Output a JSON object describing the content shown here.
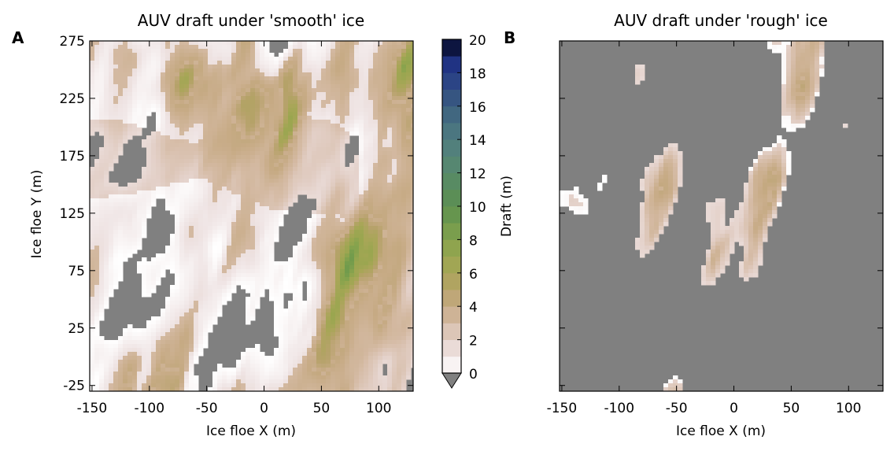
{
  "panel_letters": [
    "A",
    "B"
  ],
  "chart_data": [
    {
      "type": "heatmap",
      "title": "AUV draft under 'smooth' ice",
      "xlabel": "Ice floe X (m)",
      "ylabel": "Ice floe Y (m)",
      "xlim": [
        -152,
        130
      ],
      "ylim": [
        -30,
        275
      ],
      "xticks": [
        -150,
        -100,
        -50,
        0,
        50,
        100
      ],
      "yticks": [
        -25,
        25,
        75,
        125,
        175,
        225,
        275
      ],
      "no_data_color": "#808080",
      "seed": 7,
      "coverage": {
        "white": 0.2,
        "tan": 0.23,
        "olive": 0.08,
        "gap": 0.3
      }
    },
    {
      "type": "heatmap",
      "title": "AUV draft under 'rough' ice",
      "xlabel": "Ice floe X (m)",
      "ylabel": "",
      "xlim": [
        -152,
        130
      ],
      "ylim": [
        -30,
        275
      ],
      "xticks": [
        -150,
        -100,
        -50,
        0,
        50,
        100
      ],
      "yticks": [
        -25,
        25,
        75,
        125,
        175,
        225,
        275
      ],
      "show_ytick_labels": false,
      "no_data_color": "#808080",
      "seed": 23,
      "coverage": {
        "white": 0.05,
        "tan": 0.12,
        "olive": 0.07,
        "gap": 0.62
      }
    }
  ],
  "colorbar": {
    "label": "Draft (m)",
    "min": 0,
    "max": 20,
    "ticks": [
      0,
      2,
      4,
      6,
      8,
      10,
      12,
      14,
      16,
      18,
      20
    ],
    "levels": 20,
    "extend_below_color": "#808080",
    "stops": [
      [
        0,
        "#ffffff"
      ],
      [
        1,
        "#f0e6e6"
      ],
      [
        2,
        "#e3d0c8"
      ],
      [
        3,
        "#d5bba5"
      ],
      [
        4,
        "#c7ab86"
      ],
      [
        5,
        "#b6a26a"
      ],
      [
        6,
        "#a9a658"
      ],
      [
        7,
        "#99a64f"
      ],
      [
        8,
        "#84a24d"
      ],
      [
        9,
        "#6f9a4c"
      ],
      [
        10,
        "#5d8f50"
      ],
      [
        11,
        "#588c5c"
      ],
      [
        12,
        "#578a6a"
      ],
      [
        13,
        "#548478"
      ],
      [
        14,
        "#4f7c7f"
      ],
      [
        15,
        "#467080"
      ],
      [
        16,
        "#3b5e80"
      ],
      [
        17,
        "#304c82"
      ],
      [
        18,
        "#263c87"
      ],
      [
        19,
        "#1a2a7f"
      ],
      [
        20,
        "#000000"
      ]
    ]
  }
}
